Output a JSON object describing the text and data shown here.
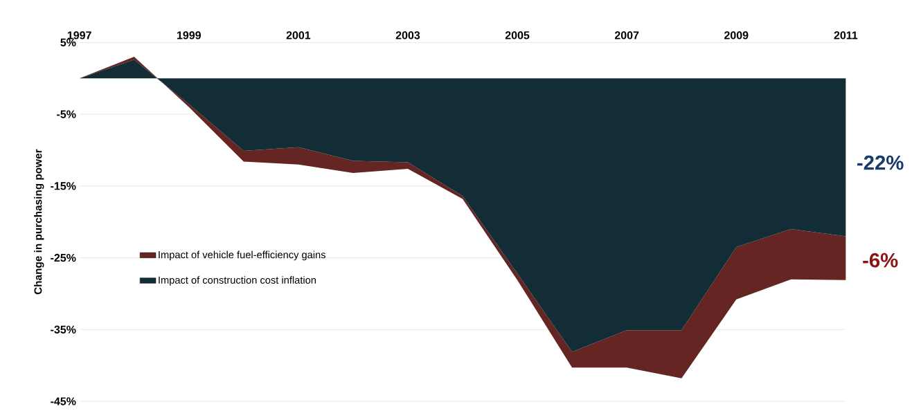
{
  "chart_data": {
    "type": "area",
    "stacked": true,
    "ylabel": "Change in purchasing power",
    "x": [
      1997,
      1998,
      1999,
      2000,
      2001,
      2002,
      2003,
      2004,
      2005,
      2006,
      2007,
      2008,
      2009,
      2010,
      2011
    ],
    "series": [
      {
        "name": "Impact of construction cost inflation",
        "color": "#132d36",
        "values": [
          0,
          2.6,
          -3.6,
          -10.1,
          -9.6,
          -11.5,
          -11.7,
          -16.4,
          -27.2,
          -38.1,
          -35.1,
          -35.1,
          -23.5,
          -21.0,
          -22.0
        ]
      },
      {
        "name": "Impact of vehicle fuel-efficiency gains",
        "color": "#642523",
        "values": [
          0,
          0.4,
          -0.4,
          -1.5,
          -2.4,
          -1.7,
          -0.9,
          -0.4,
          -0.9,
          -2.2,
          -5.2,
          -6.7,
          -7.3,
          -7.0,
          -6.1
        ]
      }
    ],
    "xlim": [
      1997,
      2011
    ],
    "xticks": [
      1997,
      1999,
      2001,
      2003,
      2005,
      2007,
      2009,
      2011
    ],
    "ylim": [
      -45,
      5
    ],
    "yticks": [
      {
        "value": 5,
        "label": "5%"
      },
      {
        "value": -5,
        "label": "-5%"
      },
      {
        "value": -15,
        "label": "-15%"
      },
      {
        "value": -25,
        "label": "-25%"
      },
      {
        "value": -35,
        "label": "-35%"
      },
      {
        "value": -45,
        "label": "-45%"
      }
    ],
    "grid": "y",
    "legend": "left",
    "annotations": [
      "-22%",
      "-6%"
    ]
  }
}
